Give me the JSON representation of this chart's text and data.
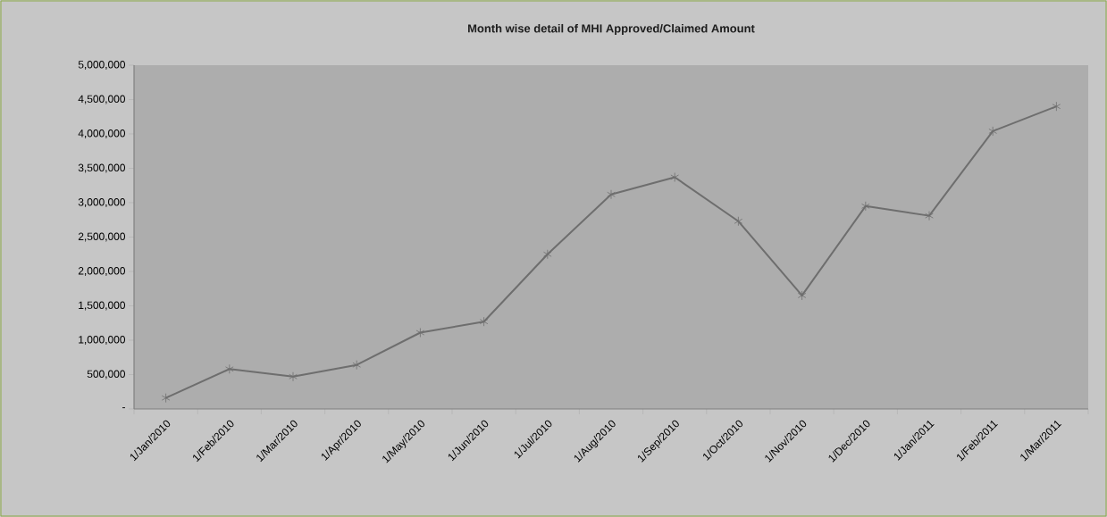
{
  "chart_data": {
    "type": "line",
    "title": "Month wise detail of MHI  Approved/Claimed Amount",
    "categories": [
      "1/Jan/2010",
      "1/Feb/2010",
      "1/Mar/2010",
      "1/Apr/2010",
      "1/May/2010",
      "1/Jun/2010",
      "1/Jul/2010",
      "1/Aug/2010",
      "1/Sep/2010",
      "1/Oct/2010",
      "1/Nov/2010",
      "1/Dec/2010",
      "1/Jan/2011",
      "1/Feb/2011",
      "1/Mar/2011"
    ],
    "series": [
      {
        "color": "#6e6e6e",
        "values": [
          160000,
          580000,
          470000,
          640000,
          1110000,
          1270000,
          2250000,
          3120000,
          3370000,
          2730000,
          1650000,
          2950000,
          2810000,
          4040000,
          4400000
        ]
      }
    ],
    "ylim": [
      0,
      5000000
    ],
    "yticks": [
      {
        "value": 0,
        "label": "-"
      },
      {
        "value": 500000,
        "label": "500,000"
      },
      {
        "value": 1000000,
        "label": "1,000,000"
      },
      {
        "value": 1500000,
        "label": "1,500,000"
      },
      {
        "value": 2000000,
        "label": "2,000,000"
      },
      {
        "value": 2500000,
        "label": "2,500,000"
      },
      {
        "value": 3000000,
        "label": "3,000,000"
      },
      {
        "value": 3500000,
        "label": "3,500,000"
      },
      {
        "value": 4000000,
        "label": "4,000,000"
      },
      {
        "value": 4500000,
        "label": "4,500,000"
      },
      {
        "value": 5000000,
        "label": "5,000,000"
      }
    ],
    "marker": "cross",
    "line_style": "solid",
    "grid": false
  }
}
